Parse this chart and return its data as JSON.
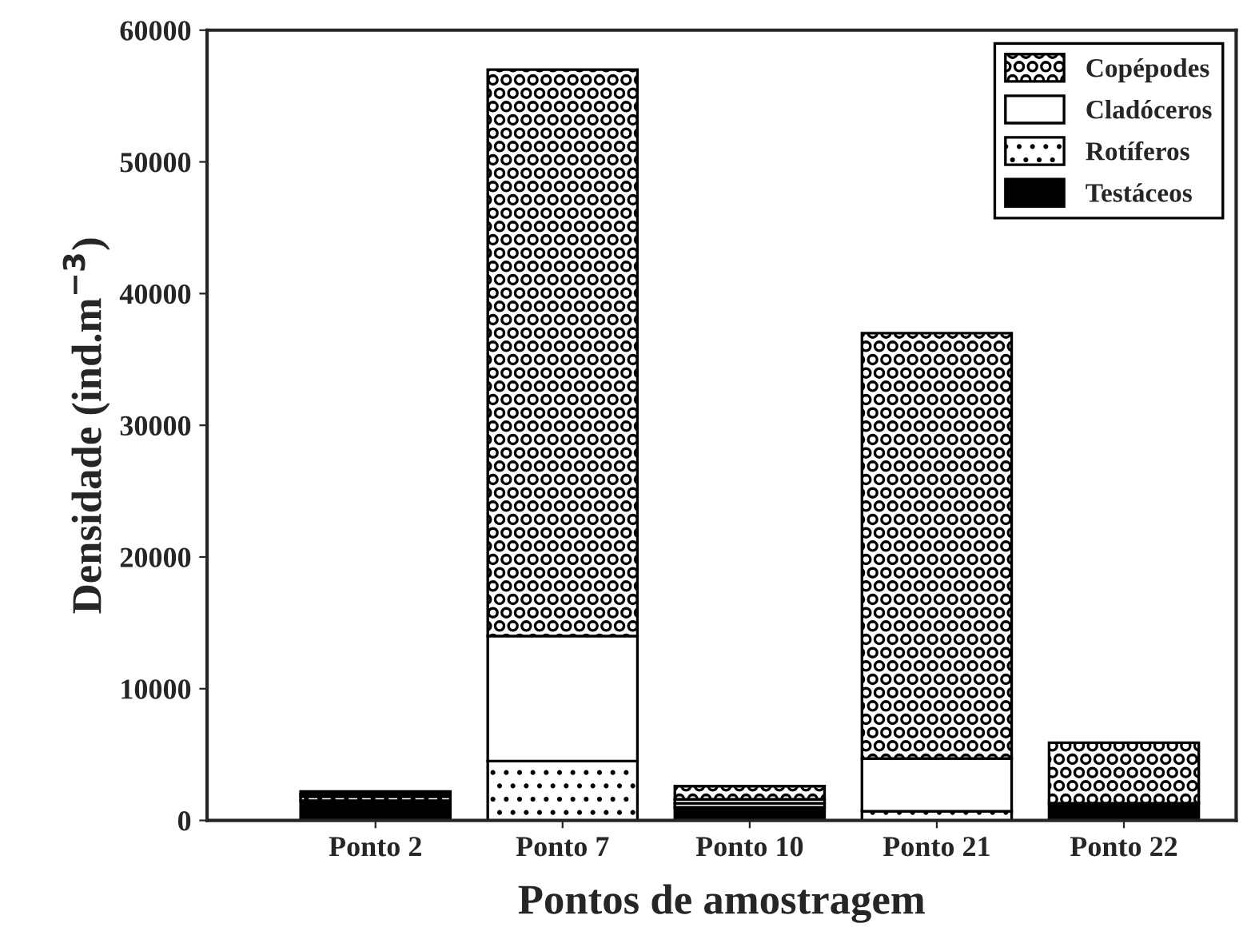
{
  "chart_data": {
    "type": "bar",
    "stacked": true,
    "xlabel": "Pontos de amostragem",
    "ylabel": "Densidade (ind.m$^{−3}$)",
    "categories": [
      "Ponto 2",
      "Ponto 7",
      "Ponto 10",
      "Ponto 21",
      "Ponto 22"
    ],
    "series": [
      {
        "name": "Testáceos",
        "color": "#000000",
        "values": [
          1500,
          0,
          1000,
          null,
          1300
        ]
      },
      {
        "name": "Rotíferos",
        "color": "#000000",
        "values": [
          300,
          4500,
          300,
          700,
          null
        ]
      },
      {
        "name": "Cladóceros",
        "color": "#ffffff",
        "values": [
          200,
          9500,
          300,
          4000,
          null
        ]
      },
      {
        "name": "Copépodes",
        "color": "#000000",
        "values": [
          200,
          43000,
          1000,
          32300,
          4600
        ]
      }
    ],
    "ylim": [
      0,
      60000
    ],
    "yticks": [
      0,
      10000,
      20000,
      30000,
      40000,
      50000,
      60000
    ],
    "grid": false,
    "legend": "top right"
  }
}
